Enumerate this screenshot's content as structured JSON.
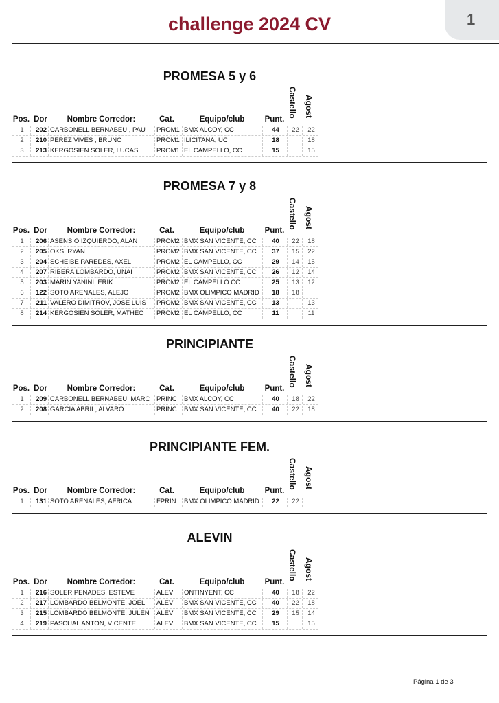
{
  "header": {
    "title": "challenge 2024 CV",
    "page_badge": "1"
  },
  "columns": {
    "pos": "Pos.",
    "dor": "Dor",
    "name": "Nombre Corredor:",
    "cat": "Cat.",
    "team": "Equipo/club",
    "points": "Punt.",
    "race1": "Castello",
    "race2": "Agost"
  },
  "sections": [
    {
      "title": "PROMESA 5 y 6",
      "rows": [
        [
          "1",
          "202",
          "CARBONELL BERNABEU , PAU",
          "PROM1",
          "BMX ALCOY, CC",
          "44",
          "22",
          "22"
        ],
        [
          "2",
          "210",
          "PEREZ VIVES , BRUNO",
          "PROM1",
          "ILICITANA, UC",
          "18",
          "",
          "18"
        ],
        [
          "3",
          "213",
          "KERGOSIEN SOLER, LUCAS",
          "PROM1",
          "EL CAMPELLO, CC",
          "15",
          "",
          "15"
        ]
      ]
    },
    {
      "title": "PROMESA 7 y 8",
      "rows": [
        [
          "1",
          "206",
          "ASENSIO IZQUIERDO, ALAN",
          "PROM2",
          "BMX SAN VICENTE, CC",
          "40",
          "22",
          "18"
        ],
        [
          "2",
          "205",
          "OKS, RYAN",
          "PROM2",
          "BMX SAN VICENTE, CC",
          "37",
          "15",
          "22"
        ],
        [
          "3",
          "204",
          "SCHEIBE PAREDES, AXEL",
          "PROM2",
          "EL CAMPELLO, CC",
          "29",
          "14",
          "15"
        ],
        [
          "4",
          "207",
          "RIBERA LOMBARDO, UNAI",
          "PROM2",
          "BMX SAN VICENTE, CC",
          "26",
          "12",
          "14"
        ],
        [
          "5",
          "203",
          "MARIN YANINI, ERIK",
          "PROM2",
          "EL CAMPELLO CC",
          "25",
          "13",
          "12"
        ],
        [
          "6",
          "122",
          "SOTO ARENALES, ALEJO",
          "PROM2",
          "BMX OLIMPICO MADRID",
          "18",
          "18",
          ""
        ],
        [
          "7",
          "211",
          "VALERO DIMITROV, JOSE LUIS",
          "PROM2",
          "BMX SAN VICENTE, CC",
          "13",
          "",
          "13"
        ],
        [
          "8",
          "214",
          "KERGOSIEN SOLER, MATHEO",
          "PROM2",
          "EL CAMPELLO, CC",
          "11",
          "",
          "11"
        ]
      ]
    },
    {
      "title": "PRINCIPIANTE",
      "rows": [
        [
          "1",
          "209",
          "CARBONELL BERNABEU, MARC",
          "PRINC",
          "BMX ALCOY, CC",
          "40",
          "18",
          "22"
        ],
        [
          "2",
          "208",
          "GARCIA ABRIL, ALVARO",
          "PRINC",
          "BMX SAN VICENTE, CC",
          "40",
          "22",
          "18"
        ]
      ]
    },
    {
      "title": "PRINCIPIANTE FEM.",
      "rows": [
        [
          "1",
          "131",
          "SOTO ARENALES, AFRICA",
          "FPRIN",
          "BMX OLIMPICO MADRID",
          "22",
          "22",
          ""
        ]
      ]
    },
    {
      "title": "ALEVIN",
      "rows": [
        [
          "1",
          "216",
          "SOLER PENADES, ESTEVE",
          "ALEVI",
          "ONTINYENT, CC",
          "40",
          "18",
          "22"
        ],
        [
          "2",
          "217",
          "LOMBARDO BELMONTE, JOEL",
          "ALEVI",
          "BMX SAN VICENTE, CC",
          "40",
          "22",
          "18"
        ],
        [
          "3",
          "215",
          "LOMBARDO BELMONTE, JULEN",
          "ALEVI",
          "BMX SAN VICENTE, CC",
          "29",
          "15",
          "14"
        ],
        [
          "4",
          "219",
          "PASCUAL ANTON, VICENTE",
          "ALEVI",
          "BMX SAN VICENTE, CC",
          "15",
          "",
          "15"
        ]
      ]
    }
  ],
  "footer": {
    "page_label": "Página 1 de 3"
  }
}
